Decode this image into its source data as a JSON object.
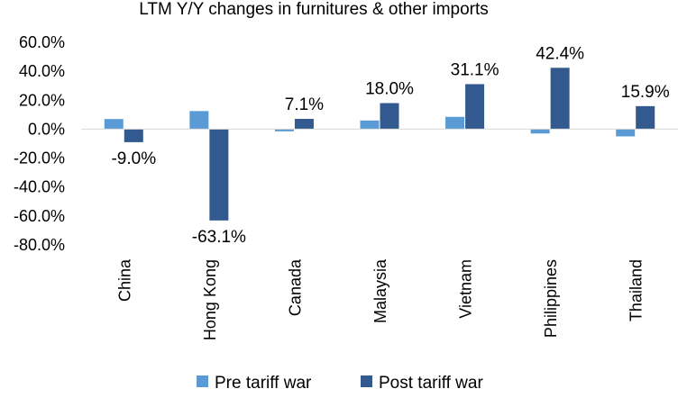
{
  "chart_data": {
    "type": "bar",
    "title": "LTM Y/Y changes in furnitures & other imports",
    "categories": [
      "China",
      "Hong Kong",
      "Canada",
      "Malaysia",
      "Vietnam",
      "Philippines",
      "Thailand"
    ],
    "ylim": [
      -80,
      60
    ],
    "yticks": [
      60,
      40,
      20,
      0,
      -20,
      -40,
      -60,
      -80
    ],
    "ytick_labels": [
      "60.0%",
      "40.0%",
      "20.0%",
      "0.0%",
      "-20.0%",
      "-40.0%",
      "-60.0%",
      "-80.0%"
    ],
    "grid": false,
    "legend_position": "bottom",
    "series": [
      {
        "name": "Pre tariff war",
        "color": "#5b9bd5",
        "values": [
          7.0,
          12.5,
          -1.5,
          6.0,
          8.5,
          -3.0,
          -5.0
        ]
      },
      {
        "name": "Post tariff war",
        "color": "#335a8e",
        "values": [
          -9.0,
          -63.1,
          7.1,
          18.0,
          31.1,
          42.4,
          15.9
        ],
        "data_labels": [
          "-9.0%",
          "-63.1%",
          "7.1%",
          "18.0%",
          "31.1%",
          "42.4%",
          "15.9%"
        ]
      }
    ]
  }
}
